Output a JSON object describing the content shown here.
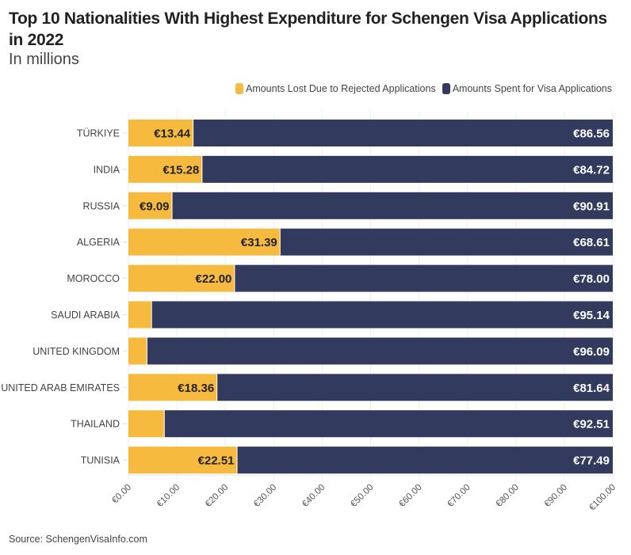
{
  "chart_data": {
    "type": "bar",
    "stacked": true,
    "orientation": "horizontal",
    "title": "Top 10 Nationalities With Highest Expenditure for Schengen Visa Applications in 2022",
    "subtitle": "In millions",
    "categories": [
      "TÜRKIYE",
      "INDIA",
      "RUSSIA",
      "ALGERIA",
      "MOROCCO",
      "SAUDI ARABIA",
      "UNITED KINGDOM",
      "UNITED ARAB EMIRATES",
      "THAILAND",
      "TUNISIA"
    ],
    "series": [
      {
        "name": "Amounts Lost Due to Rejected Applications",
        "color": "#F6BA3F",
        "values": [
          13.44,
          15.28,
          9.09,
          31.39,
          22.0,
          4.86,
          3.91,
          18.36,
          7.49,
          22.51
        ],
        "labels": [
          "€13.44",
          "€15.28",
          "€9.09",
          "€31.39",
          "€22.00",
          "",
          "",
          "€18.36",
          "",
          "€22.51"
        ]
      },
      {
        "name": "Amounts Spent for Visa Applications",
        "color": "#323B5E",
        "values": [
          86.56,
          84.72,
          90.91,
          68.61,
          78.0,
          95.14,
          96.09,
          81.64,
          92.51,
          77.49
        ],
        "labels": [
          "€86.56",
          "€84.72",
          "€90.91",
          "€68.61",
          "€78.00",
          "€95.14",
          "€96.09",
          "€81.64",
          "€92.51",
          "€77.49"
        ]
      }
    ],
    "xlim": [
      0,
      100
    ],
    "xticks": [
      "€0.00",
      "€10.00",
      "€20.00",
      "€30.00",
      "€40.00",
      "€50.00",
      "€60.00",
      "€70.00",
      "€80.00",
      "€90.00",
      "€100.00"
    ],
    "legend_position": "top-right",
    "source": "Source: SchengenVisaInfo.com"
  }
}
